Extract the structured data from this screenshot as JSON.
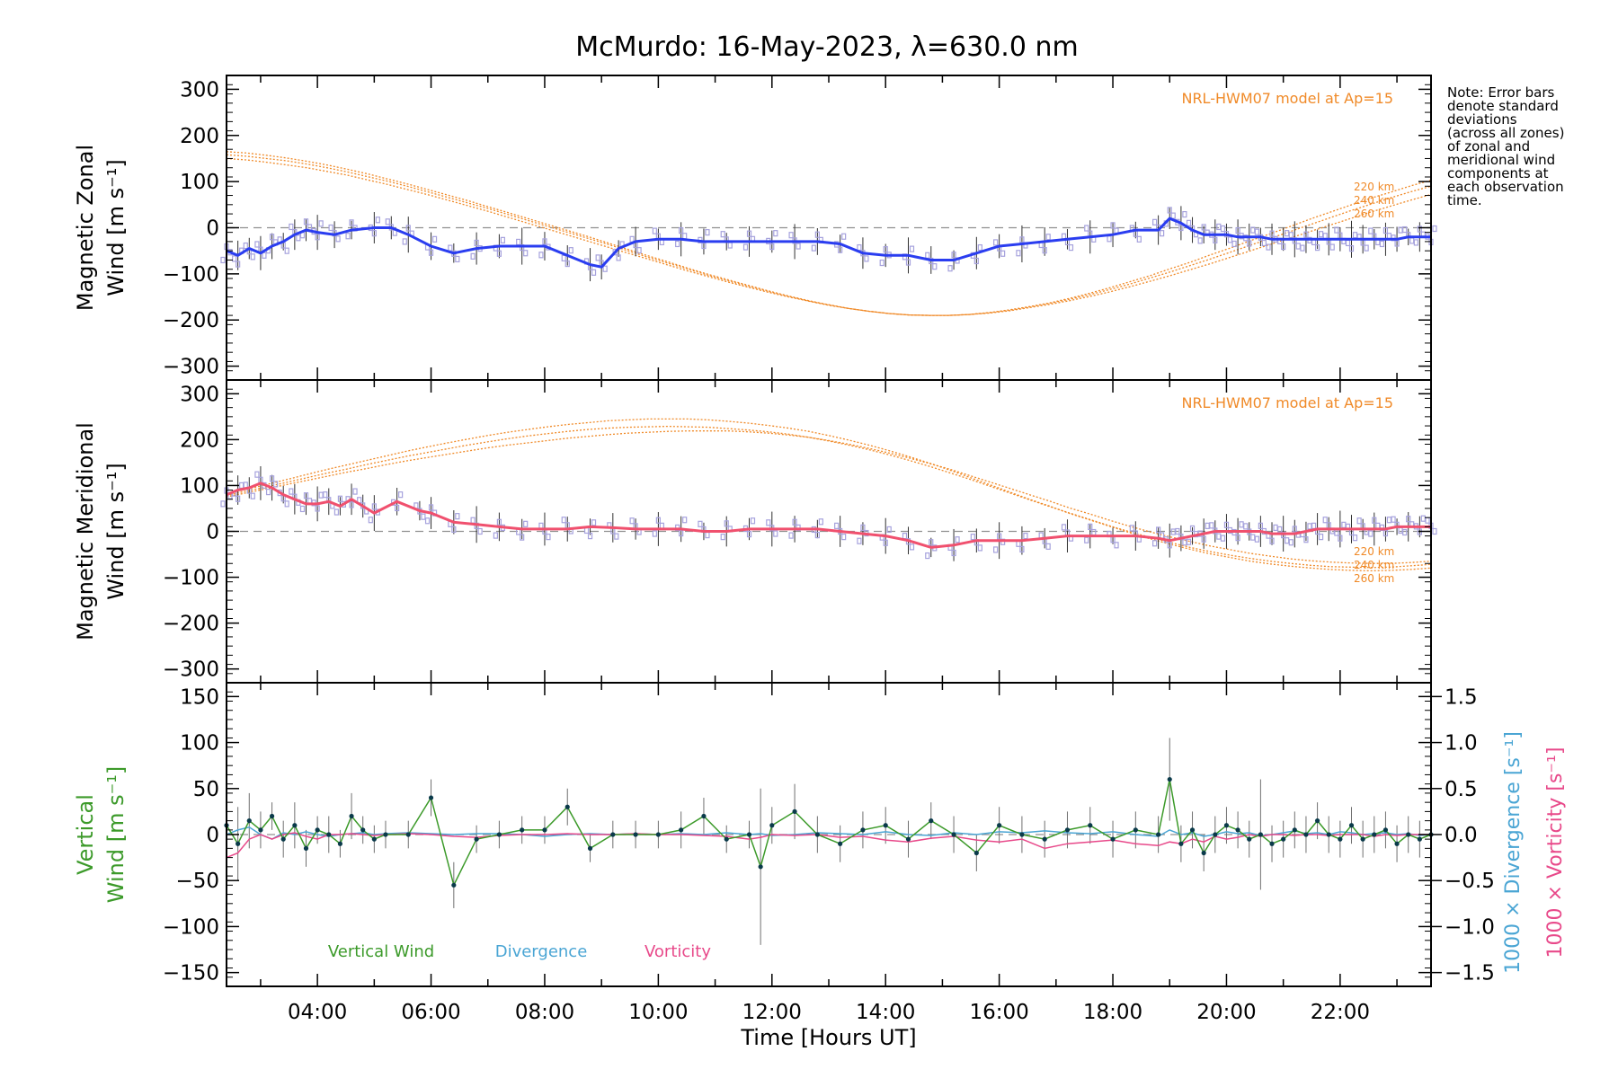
{
  "colors": {
    "zonal": "#2a3df0",
    "meridional": "#f0506e",
    "model": "#f08a28",
    "zone_points": "#a6a2dd",
    "vertical": "#3c9a2a",
    "divergence": "#4aa5d4",
    "vorticity": "#e8498a",
    "errorbar": "#707070",
    "zero_line": "#909090"
  },
  "note_lines": [
    "Note: Error bars",
    "denote standard",
    "deviations",
    "(across all zones)",
    "of zonal and",
    "meridional wind",
    "components at",
    "each observation",
    "time."
  ],
  "chart_data": [
    {
      "type": "line",
      "panel": "zonal",
      "title": "McMurdo: 16-May-2023, λ=630.0 nm",
      "ylabel_line1": "Magnetic Zonal",
      "ylabel_line2": "Wind [m s⁻¹]",
      "ylim": [
        -330,
        330
      ],
      "yticks": [
        -300,
        -200,
        -100,
        0,
        100,
        200,
        300
      ],
      "xlim": [
        2.4,
        23.6
      ],
      "model_label": "NRL-HWM07 model at Ap=15",
      "model_altitudes": [
        "220 km",
        "240 km",
        "260 km"
      ],
      "series_x": [
        2.4,
        2.6,
        2.8,
        3.0,
        3.2,
        3.4,
        3.6,
        3.8,
        4.0,
        4.3,
        4.6,
        5.0,
        5.3,
        5.6,
        6.0,
        6.4,
        6.8,
        7.2,
        7.6,
        8.0,
        8.4,
        8.8,
        9.0,
        9.3,
        9.6,
        10.0,
        10.4,
        10.8,
        11.2,
        11.6,
        12.0,
        12.4,
        12.8,
        13.2,
        13.6,
        14.0,
        14.4,
        14.8,
        15.2,
        15.6,
        16.0,
        16.4,
        16.8,
        17.2,
        17.6,
        18.0,
        18.4,
        18.8,
        19.0,
        19.2,
        19.4,
        19.6,
        19.8,
        20.0,
        20.2,
        20.4,
        20.6,
        20.8,
        21.0,
        21.2,
        21.4,
        21.6,
        21.8,
        22.0,
        22.2,
        22.4,
        22.6,
        22.8,
        23.0,
        23.2,
        23.4,
        23.6
      ],
      "series_y": [
        -50,
        -60,
        -45,
        -55,
        -40,
        -30,
        -15,
        -5,
        -10,
        -15,
        -5,
        0,
        0,
        -15,
        -40,
        -55,
        -45,
        -40,
        -40,
        -40,
        -60,
        -80,
        -85,
        -45,
        -30,
        -25,
        -25,
        -30,
        -30,
        -30,
        -30,
        -30,
        -30,
        -35,
        -55,
        -60,
        -60,
        -70,
        -70,
        -55,
        -40,
        -35,
        -30,
        -25,
        -20,
        -15,
        -5,
        -5,
        20,
        10,
        -5,
        -15,
        -15,
        -15,
        -20,
        -20,
        -20,
        -25,
        -25,
        -25,
        -25,
        -25,
        -25,
        -25,
        -25,
        -25,
        -25,
        -25,
        -25,
        -20,
        -20,
        -20
      ],
      "model_220": [
        165,
        162,
        157,
        151,
        144,
        136,
        127,
        117,
        106,
        95,
        83,
        71,
        59,
        46,
        33,
        20,
        7,
        -6,
        -19,
        -33,
        -47,
        -61,
        -74,
        -88,
        -101,
        -113,
        -125,
        -137,
        -148,
        -158,
        -167,
        -175,
        -181,
        -186,
        -189,
        -190,
        -190,
        -188,
        -184,
        -178,
        -171,
        -163,
        -153,
        -142,
        -130,
        -117,
        -104,
        -89,
        -75,
        -59,
        -44,
        -28,
        -13,
        3,
        19,
        34,
        49,
        64,
        77,
        91,
        103
      ],
      "model_240": [
        158,
        155,
        150,
        145,
        138,
        130,
        121,
        111,
        101,
        90,
        78,
        66,
        54,
        42,
        29,
        16,
        3,
        -10,
        -23,
        -36,
        -50,
        -64,
        -77,
        -90,
        -103,
        -115,
        -127,
        -138,
        -149,
        -159,
        -167,
        -175,
        -181,
        -186,
        -189,
        -190,
        -190,
        -188,
        -184,
        -179,
        -172,
        -164,
        -155,
        -145,
        -134,
        -122,
        -109,
        -96,
        -82,
        -68,
        -53,
        -38,
        -23,
        -8,
        7,
        22,
        37,
        51,
        65,
        78,
        90
      ],
      "model_260": [
        150,
        147,
        142,
        136,
        130,
        122,
        114,
        104,
        94,
        83,
        72,
        60,
        48,
        36,
        23,
        10,
        -3,
        -16,
        -29,
        -42,
        -55,
        -68,
        -81,
        -94,
        -106,
        -118,
        -129,
        -140,
        -150,
        -159,
        -168,
        -175,
        -181,
        -186,
        -189,
        -190,
        -190,
        -188,
        -185,
        -180,
        -173,
        -166,
        -158,
        -149,
        -139,
        -128,
        -116,
        -104,
        -91,
        -78,
        -64,
        -50,
        -36,
        -22,
        -8,
        6,
        20,
        34,
        47,
        60,
        72
      ]
    },
    {
      "type": "line",
      "panel": "meridional",
      "ylabel_line1": "Magnetic Meridional",
      "ylabel_line2": "Wind [m s⁻¹]",
      "ylim": [
        -330,
        330
      ],
      "yticks": [
        -300,
        -200,
        -100,
        0,
        100,
        200,
        300
      ],
      "xlim": [
        2.4,
        23.6
      ],
      "model_label": "NRL-HWM07 model at Ap=15",
      "model_altitudes": [
        "220 km",
        "240 km",
        "260 km"
      ],
      "series_x": [
        2.4,
        2.6,
        2.8,
        3.0,
        3.2,
        3.4,
        3.6,
        3.8,
        4.0,
        4.2,
        4.4,
        4.6,
        4.8,
        5.0,
        5.4,
        5.8,
        6.0,
        6.4,
        6.8,
        7.2,
        7.6,
        8.0,
        8.4,
        8.8,
        9.2,
        9.6,
        10.0,
        10.4,
        10.8,
        11.2,
        11.6,
        12.0,
        12.4,
        12.8,
        13.2,
        13.6,
        14.0,
        14.4,
        14.8,
        15.2,
        15.6,
        16.0,
        16.4,
        16.8,
        17.2,
        17.6,
        18.0,
        18.4,
        18.8,
        19.0,
        19.2,
        19.4,
        19.6,
        19.8,
        20.0,
        20.2,
        20.4,
        20.6,
        20.8,
        21.0,
        21.2,
        21.4,
        21.6,
        21.8,
        22.0,
        22.2,
        22.4,
        22.6,
        22.8,
        23.0,
        23.2,
        23.4,
        23.6
      ],
      "series_y": [
        80,
        90,
        95,
        105,
        95,
        80,
        70,
        60,
        60,
        65,
        55,
        70,
        55,
        40,
        65,
        45,
        40,
        20,
        15,
        10,
        5,
        5,
        5,
        10,
        8,
        5,
        5,
        5,
        0,
        0,
        5,
        5,
        5,
        5,
        0,
        -5,
        -10,
        -20,
        -35,
        -30,
        -20,
        -20,
        -20,
        -15,
        -10,
        -10,
        -10,
        -10,
        -15,
        -20,
        -15,
        -10,
        -5,
        0,
        0,
        0,
        0,
        0,
        -5,
        -5,
        -5,
        0,
        5,
        5,
        5,
        5,
        5,
        5,
        5,
        10,
        10,
        10,
        10
      ],
      "model_220": [
        75,
        84,
        93,
        102,
        111,
        120,
        129,
        137,
        146,
        154,
        161,
        168,
        175,
        182,
        188,
        193,
        198,
        203,
        207,
        211,
        214,
        216,
        218,
        219,
        219,
        219,
        217,
        214,
        210,
        205,
        198,
        190,
        181,
        171,
        160,
        148,
        136,
        122,
        108,
        94,
        80,
        66,
        51,
        38,
        24,
        11,
        -1,
        -12,
        -22,
        -32,
        -40,
        -48,
        -54,
        -60,
        -64,
        -67,
        -69,
        -70,
        -70,
        -68,
        -65
      ],
      "model_240": [
        78,
        88,
        97,
        107,
        117,
        127,
        136,
        146,
        155,
        164,
        172,
        180,
        188,
        195,
        202,
        208,
        213,
        218,
        222,
        225,
        227,
        228,
        229,
        228,
        227,
        224,
        221,
        217,
        212,
        205,
        197,
        188,
        178,
        167,
        155,
        142,
        128,
        114,
        99,
        84,
        69,
        54,
        40,
        26,
        12,
        -1,
        -13,
        -24,
        -35,
        -44,
        -52,
        -59,
        -65,
        -70,
        -74,
        -77,
        -78,
        -79,
        -78,
        -75,
        -72
      ],
      "model_260": [
        81,
        92,
        102,
        113,
        124,
        135,
        145,
        155,
        165,
        175,
        184,
        193,
        201,
        209,
        216,
        222,
        228,
        233,
        237,
        241,
        243,
        245,
        245,
        245,
        243,
        240,
        236,
        231,
        225,
        218,
        209,
        199,
        188,
        176,
        163,
        149,
        134,
        118,
        102,
        86,
        70,
        55,
        39,
        25,
        11,
        -3,
        -16,
        -28,
        -39,
        -49,
        -57,
        -65,
        -71,
        -76,
        -80,
        -83,
        -85,
        -86,
        -85,
        -83,
        -80
      ]
    },
    {
      "type": "line",
      "panel": "vertical",
      "ylabel_line1": "Vertical",
      "ylabel_line2": "Wind [m s⁻¹]",
      "ylim": [
        -165,
        165
      ],
      "yticks": [
        -150,
        -100,
        -50,
        0,
        50,
        100,
        150
      ],
      "y2lim": [
        -1.65,
        1.65
      ],
      "y2ticks": [
        -1.5,
        -1.0,
        -0.5,
        0.0,
        0.5,
        1.0,
        1.5
      ],
      "y2label_divergence": "1000 × Divergence [s⁻¹]",
      "y2label_vorticity": "1000 × Vorticity [s⁻¹]",
      "xlim": [
        2.4,
        23.6
      ],
      "xticks": [
        4,
        6,
        8,
        10,
        12,
        14,
        16,
        18,
        20,
        22
      ],
      "xticklabels": [
        "04:00",
        "06:00",
        "08:00",
        "10:00",
        "12:00",
        "14:00",
        "16:00",
        "18:00",
        "20:00",
        "22:00"
      ],
      "xlabel": "Time [Hours UT]",
      "legend": [
        "Vertical Wind",
        "Divergence",
        "Vorticity"
      ],
      "vertical_x": [
        2.4,
        2.6,
        2.8,
        3.0,
        3.2,
        3.4,
        3.6,
        3.8,
        4.0,
        4.2,
        4.4,
        4.6,
        4.8,
        5.0,
        5.2,
        5.6,
        6.0,
        6.4,
        6.8,
        7.2,
        7.6,
        8.0,
        8.4,
        8.8,
        9.2,
        9.6,
        10.0,
        10.4,
        10.8,
        11.2,
        11.6,
        11.8,
        12.0,
        12.4,
        12.8,
        13.2,
        13.6,
        14.0,
        14.4,
        14.8,
        15.2,
        15.6,
        16.0,
        16.4,
        16.8,
        17.2,
        17.6,
        18.0,
        18.4,
        18.8,
        19.0,
        19.2,
        19.4,
        19.6,
        19.8,
        20.0,
        20.2,
        20.4,
        20.6,
        20.8,
        21.0,
        21.2,
        21.4,
        21.6,
        21.8,
        22.0,
        22.2,
        22.4,
        22.6,
        22.8,
        23.0,
        23.2,
        23.4,
        23.6
      ],
      "vertical_y": [
        10,
        -10,
        15,
        5,
        20,
        -5,
        10,
        -15,
        5,
        0,
        -10,
        20,
        5,
        -5,
        0,
        0,
        40,
        -55,
        -5,
        0,
        5,
        5,
        30,
        -15,
        0,
        0,
        0,
        5,
        20,
        -5,
        0,
        -35,
        10,
        25,
        0,
        -10,
        5,
        10,
        -5,
        15,
        0,
        -20,
        10,
        0,
        -5,
        5,
        10,
        -5,
        5,
        0,
        60,
        -10,
        5,
        -20,
        0,
        10,
        5,
        -5,
        0,
        -10,
        -5,
        5,
        0,
        15,
        0,
        -5,
        10,
        -5,
        0,
        5,
        -10,
        0,
        -5,
        0
      ],
      "vertical_err": [
        25,
        40,
        30,
        20,
        15,
        20,
        25,
        20,
        15,
        20,
        15,
        25,
        15,
        15,
        15,
        15,
        20,
        25,
        15,
        15,
        15,
        15,
        20,
        15,
        15,
        15,
        15,
        20,
        20,
        15,
        15,
        85,
        20,
        30,
        20,
        20,
        20,
        20,
        20,
        20,
        20,
        20,
        20,
        20,
        20,
        20,
        20,
        20,
        20,
        20,
        45,
        20,
        20,
        20,
        20,
        20,
        20,
        20,
        60,
        20,
        20,
        20,
        20,
        20,
        20,
        20,
        20,
        20,
        20,
        20,
        20,
        20,
        20,
        20
      ],
      "divergence_y": [
        0.0,
        0.05,
        0.08,
        0.0,
        -0.05,
        0.02,
        0.0,
        0.03,
        0.0,
        -0.02,
        0.0,
        0.01,
        0.02,
        0.0,
        0.01,
        0.02,
        0.01,
        0.0,
        0.01,
        0.01,
        0.0,
        -0.02,
        0.0,
        0.01,
        0.0,
        0.01,
        0.0,
        0.01,
        0.0,
        0.02,
        0.0,
        0.01,
        -0.01,
        0.0,
        0.02,
        0.01,
        0.0,
        0.03,
        0.0,
        -0.01,
        0.02,
        0.0,
        0.03,
        0.02,
        0.04,
        0.02,
        0.01,
        0.03,
        0.0,
        -0.02,
        0.05,
        0.0,
        0.02,
        -0.02,
        0.0,
        0.03,
        0.01,
        0.02,
        -0.01,
        0.0,
        0.02,
        0.04,
        0.01,
        0.02,
        0.0,
        0.03,
        0.02,
        0.0,
        0.01,
        0.02,
        0.0,
        0.01,
        -0.01,
        0.0
      ],
      "vorticity_y": [
        -0.25,
        -0.2,
        -0.05,
        0.0,
        -0.05,
        0.0,
        0.02,
        -0.02,
        -0.05,
        0.0,
        0.0,
        0.01,
        0.0,
        -0.01,
        0.0,
        0.01,
        0.0,
        -0.02,
        -0.03,
        -0.01,
        0.0,
        0.0,
        0.01,
        0.0,
        0.0,
        0.01,
        0.0,
        0.0,
        -0.01,
        -0.02,
        -0.05,
        -0.03,
        0.0,
        -0.01,
        0.0,
        -0.03,
        -0.02,
        -0.06,
        -0.08,
        -0.04,
        -0.02,
        -0.06,
        -0.08,
        -0.05,
        -0.15,
        -0.1,
        -0.08,
        -0.06,
        -0.1,
        -0.12,
        -0.08,
        -0.1,
        -0.05,
        -0.08,
        -0.02,
        -0.05,
        -0.03,
        0.0,
        -0.02,
        0.0,
        0.0,
        -0.01,
        0.0,
        0.0,
        -0.01,
        0.0,
        0.0,
        0.0,
        -0.02,
        0.0,
        -0.01,
        0.0,
        0.0,
        0.0
      ]
    }
  ]
}
